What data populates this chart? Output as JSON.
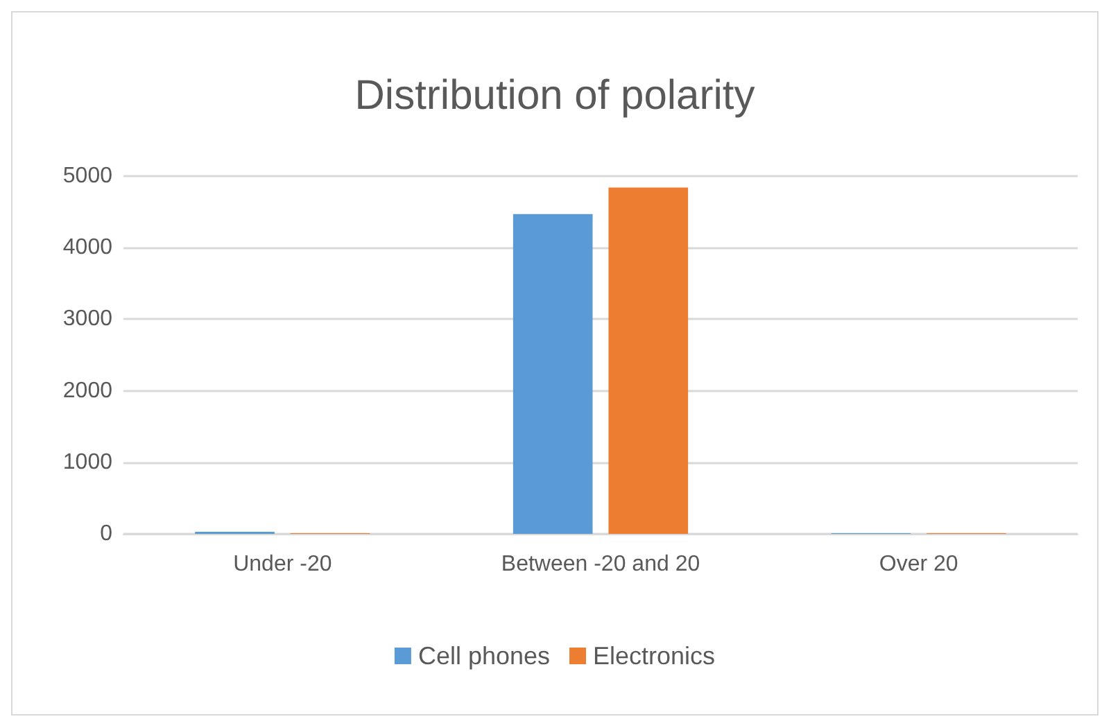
{
  "chart_data": {
    "type": "bar",
    "title": "Distribution of polarity",
    "categories": [
      "Under -20",
      "Between -20 and 20",
      "Over 20"
    ],
    "series": [
      {
        "name": "Cell phones",
        "color": "#5b9bd5",
        "values": [
          30,
          4470,
          10
        ]
      },
      {
        "name": "Electronics",
        "color": "#ed7d31",
        "values": [
          10,
          4840,
          10
        ]
      }
    ],
    "ylim": [
      0,
      5000
    ],
    "yticks": [
      0,
      1000,
      2000,
      3000,
      4000,
      5000
    ],
    "grid": "y",
    "legend": "bottom"
  }
}
